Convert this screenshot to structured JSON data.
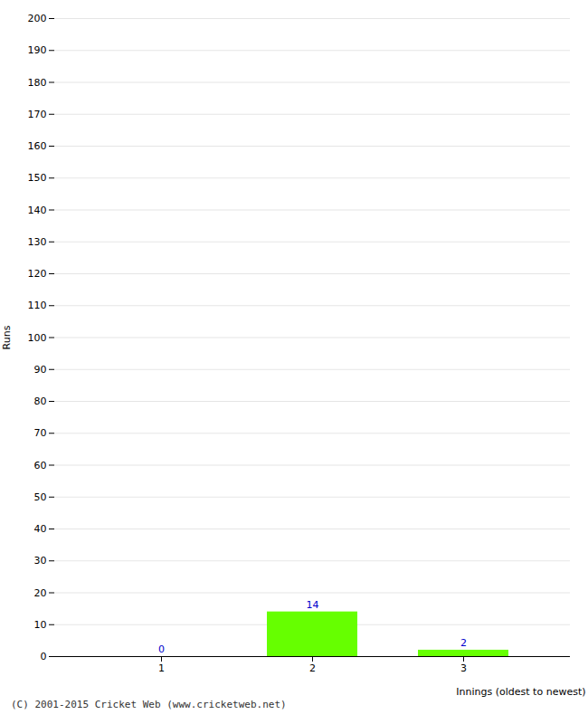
{
  "chart_data": {
    "type": "bar",
    "xlabel": "Innings (oldest to newest)",
    "ylabel": "Runs",
    "caption": "(C) 2001-2015 Cricket Web (www.cricketweb.net)",
    "categories": [
      1,
      2,
      3
    ],
    "values": [
      0,
      14,
      2
    ],
    "color": "#66ff00",
    "ylim": [
      0,
      200
    ],
    "yticks": [
      0,
      10,
      20,
      30,
      40,
      50,
      60,
      70,
      80,
      90,
      100,
      110,
      120,
      130,
      140,
      150,
      160,
      170,
      180,
      190,
      200
    ],
    "grid": true,
    "data_labels": true
  }
}
